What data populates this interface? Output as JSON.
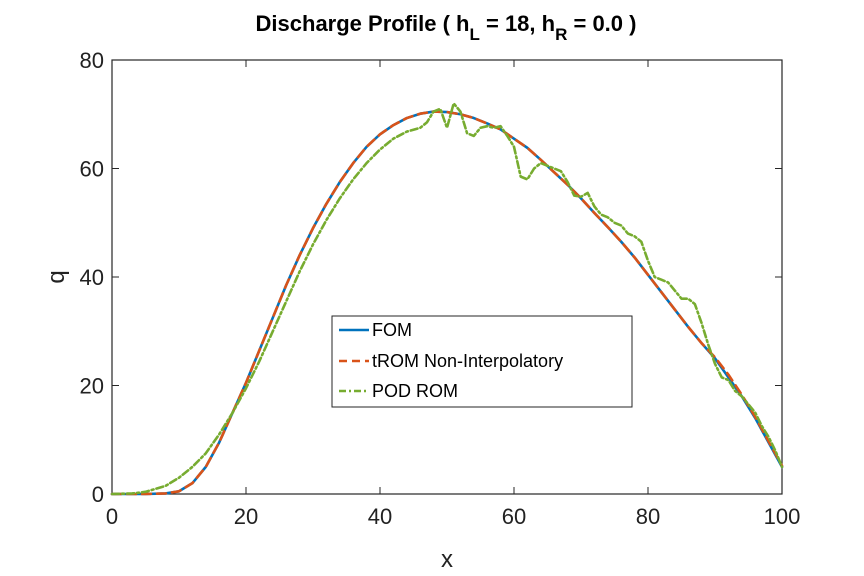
{
  "chart_data": {
    "type": "line",
    "title": {
      "prefix": "Discharge Profile ( h",
      "sub_left": "L",
      "middle": " = 18, h",
      "sub_right": "R",
      "suffix": " = 0.0 )"
    },
    "xlabel": "x",
    "ylabel": "q",
    "xlim": [
      0,
      100
    ],
    "ylim": [
      0,
      80
    ],
    "xticks": [
      0,
      20,
      40,
      60,
      80,
      100
    ],
    "yticks": [
      0,
      20,
      40,
      60,
      80
    ],
    "legend_position": "center",
    "series": [
      {
        "name": "FOM",
        "color": "#0072BD",
        "style": "solid",
        "x": [
          0,
          5,
          8,
          10,
          12,
          14,
          16,
          18,
          20,
          22,
          24,
          26,
          28,
          30,
          32,
          34,
          36,
          38,
          40,
          42,
          44,
          46,
          48,
          50,
          52,
          54,
          56,
          58,
          60,
          62,
          64,
          66,
          68,
          70,
          72,
          74,
          76,
          78,
          80,
          82,
          84,
          86,
          88,
          90,
          92,
          94,
          96,
          98,
          100
        ],
        "y": [
          0,
          0,
          0.1,
          0.5,
          2.0,
          5.0,
          9.5,
          15.0,
          20.5,
          26.5,
          32.5,
          38.5,
          44.0,
          49.0,
          53.5,
          57.5,
          61.0,
          64.0,
          66.3,
          68.0,
          69.3,
          70.1,
          70.5,
          70.4,
          70.0,
          69.3,
          68.3,
          67.2,
          65.5,
          63.8,
          61.6,
          59.3,
          57.0,
          54.5,
          51.8,
          49.2,
          46.5,
          43.6,
          40.4,
          37.2,
          34.0,
          30.8,
          27.8,
          25.0,
          21.5,
          18.0,
          14.0,
          9.5,
          5.0
        ]
      },
      {
        "name": "tROM Non-Interpolatory",
        "color": "#D95319",
        "style": "dashed",
        "x": [
          0,
          5,
          8,
          10,
          12,
          14,
          16,
          18,
          20,
          22,
          24,
          26,
          28,
          30,
          32,
          34,
          36,
          38,
          40,
          42,
          44,
          46,
          48,
          50,
          52,
          54,
          56,
          58,
          60,
          62,
          64,
          66,
          68,
          70,
          72,
          74,
          76,
          78,
          80,
          82,
          84,
          86,
          88,
          90,
          92,
          94,
          96,
          98,
          100
        ],
        "y": [
          0,
          0,
          0.1,
          0.5,
          2.0,
          5.0,
          9.5,
          15.0,
          20.5,
          26.5,
          32.5,
          38.5,
          44.0,
          49.0,
          53.5,
          57.5,
          61.0,
          64.0,
          66.3,
          68.0,
          69.3,
          70.1,
          70.5,
          70.4,
          70.0,
          69.3,
          68.3,
          67.2,
          65.5,
          63.8,
          61.6,
          59.3,
          57.0,
          54.5,
          51.8,
          49.2,
          46.5,
          43.6,
          40.4,
          37.2,
          34.0,
          30.8,
          27.8,
          25.2,
          22.0,
          18.3,
          14.2,
          9.7,
          5.2
        ]
      },
      {
        "name": "POD ROM",
        "color": "#77AC30",
        "style": "dashdot",
        "x": [
          0,
          3,
          5,
          8,
          10,
          12,
          14,
          16,
          18,
          20,
          22,
          24,
          26,
          28,
          30,
          32,
          34,
          36,
          38,
          40,
          42,
          44,
          46,
          47,
          48,
          49,
          50,
          51,
          52,
          53,
          54,
          55,
          56,
          57,
          58,
          59,
          60,
          61,
          62,
          63,
          64,
          65,
          66,
          67,
          68,
          69,
          70,
          71,
          72,
          73,
          74,
          75,
          76,
          77,
          78,
          79,
          80,
          81,
          82,
          83,
          84,
          85,
          86,
          87,
          88,
          89,
          90,
          91,
          92,
          93,
          94,
          95,
          96,
          97,
          98,
          99,
          100
        ],
        "y": [
          0,
          0.1,
          0.4,
          1.5,
          3.0,
          5.0,
          7.5,
          11.0,
          15.0,
          19.5,
          24.5,
          30.0,
          35.5,
          41.0,
          46.0,
          50.5,
          54.5,
          58.0,
          61.0,
          63.5,
          65.5,
          66.8,
          67.5,
          68.5,
          70.5,
          71.0,
          67.5,
          72.0,
          70.5,
          66.5,
          66.0,
          67.5,
          67.8,
          67.5,
          67.8,
          66.0,
          64.0,
          58.5,
          58.0,
          60.0,
          61.0,
          60.5,
          60.0,
          59.5,
          57.5,
          55.0,
          54.8,
          55.5,
          53.0,
          51.5,
          51.0,
          50.0,
          49.5,
          48.0,
          47.5,
          46.5,
          43.0,
          40.0,
          39.5,
          39.0,
          37.5,
          36.0,
          36.0,
          35.0,
          31.5,
          27.5,
          24.0,
          21.5,
          21.0,
          19.0,
          18.0,
          16.5,
          15.0,
          12.5,
          10.5,
          8.0,
          5.0
        ]
      }
    ]
  }
}
